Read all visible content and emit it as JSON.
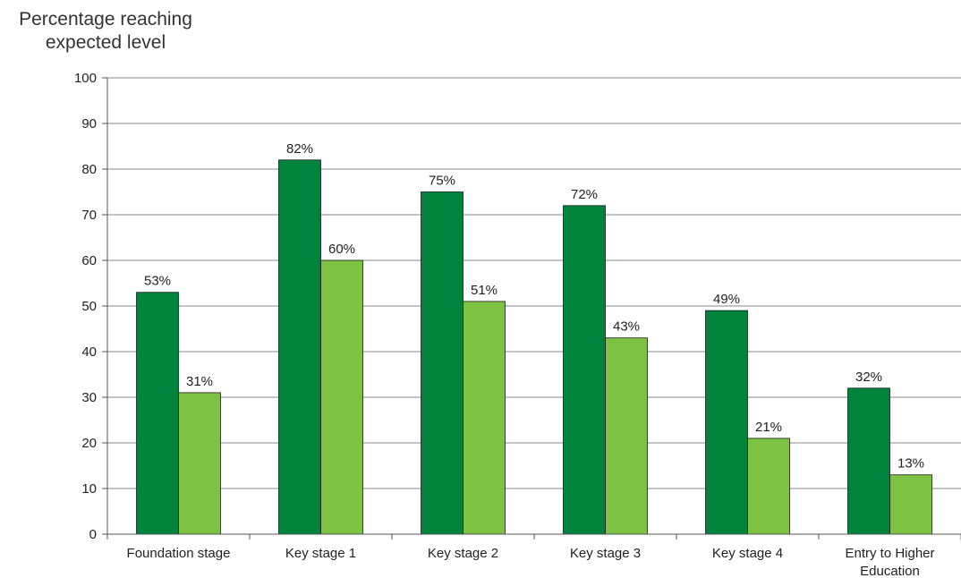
{
  "chart_data": {
    "type": "bar",
    "ylabel_lines": [
      "Percentage reaching",
      "expected level"
    ],
    "categories": [
      [
        "Foundation stage"
      ],
      [
        "Key stage 1"
      ],
      [
        "Key stage 2"
      ],
      [
        "Key stage 3"
      ],
      [
        "Key stage 4"
      ],
      [
        "Entry to Higher",
        "Education"
      ]
    ],
    "series": [
      {
        "values": [
          53,
          82,
          75,
          72,
          49,
          32
        ],
        "labels": [
          "53%",
          "82%",
          "75%",
          "72%",
          "49%",
          "32%"
        ],
        "color": "#00843d"
      },
      {
        "values": [
          31,
          60,
          51,
          43,
          21,
          13
        ],
        "labels": [
          "31%",
          "60%",
          "51%",
          "43%",
          "21%",
          "13%"
        ],
        "color": "#7dc242"
      }
    ],
    "yticks": [
      "0",
      "10",
      "20",
      "30",
      "40",
      "50",
      "60",
      "70",
      "80",
      "90",
      "100"
    ],
    "ylim": [
      0,
      100
    ],
    "grid": true
  }
}
